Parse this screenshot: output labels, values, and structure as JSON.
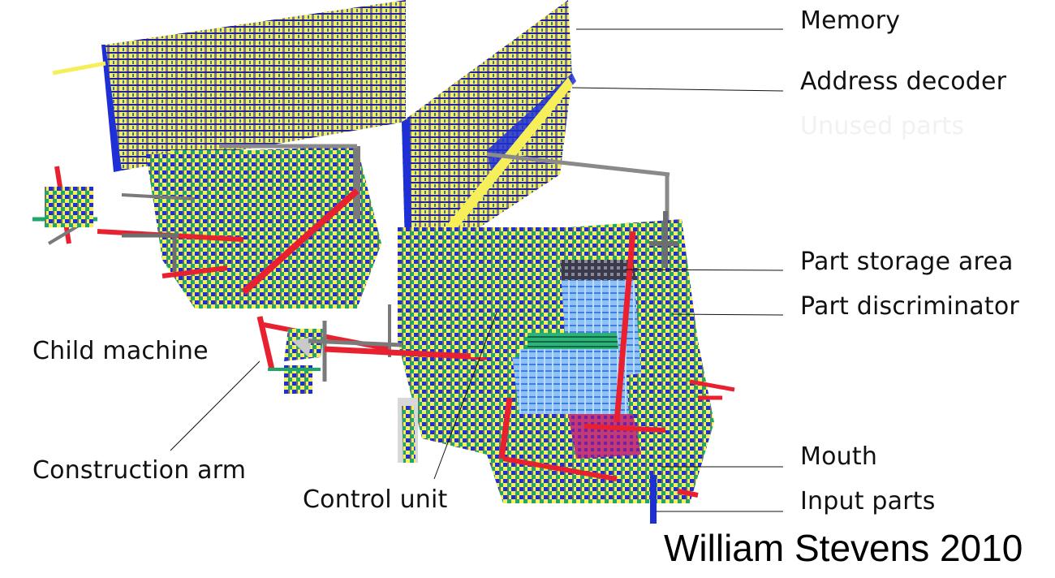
{
  "labels": {
    "memory": "Memory",
    "address_decoder": "Address decoder",
    "unused_parts": "Unused parts",
    "part_storage_area": "Part storage area",
    "part_discriminator": "Part discriminator",
    "child_machine": "Child machine",
    "construction_arm": "Construction arm",
    "control_unit": "Control unit",
    "mouth": "Mouth",
    "input_parts": "Input parts"
  },
  "credit": "William Stevens 2010",
  "colors": {
    "yellow": "#f6ef5a",
    "blue": "#1f2fd6",
    "green": "#1ea76a",
    "red": "#e8202f",
    "gray": "#6e6e6e",
    "pale_blue": "#8fc2f2"
  }
}
